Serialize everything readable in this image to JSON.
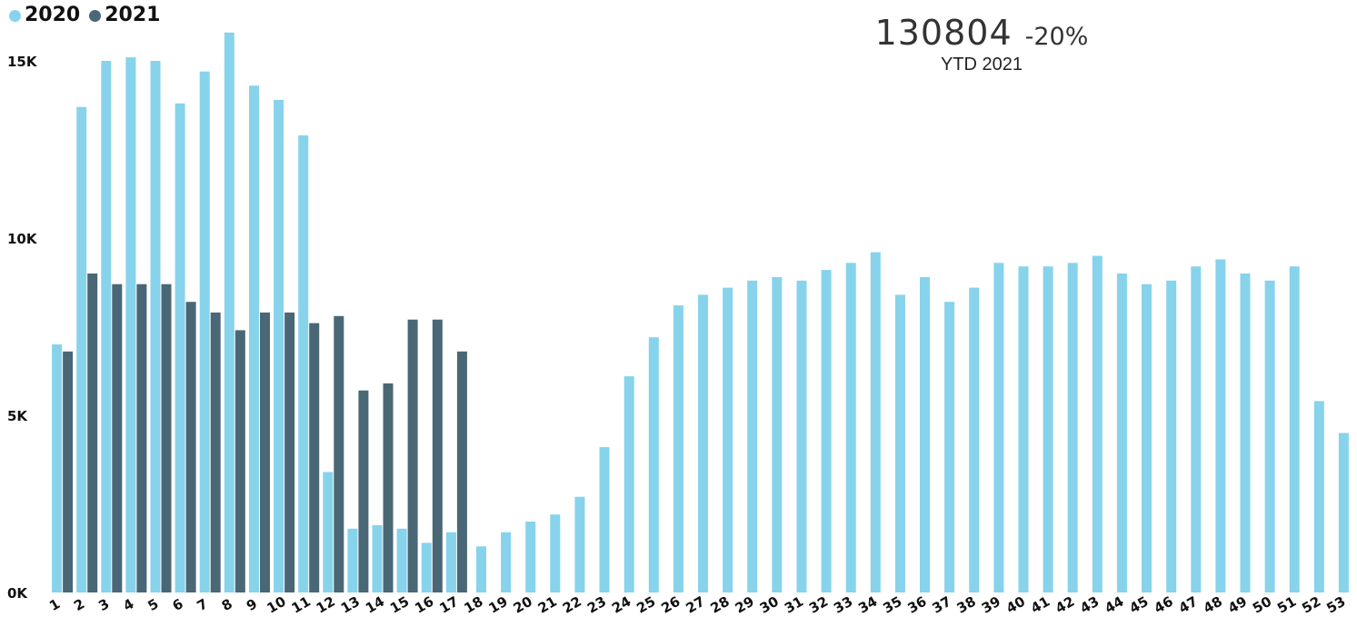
{
  "legend": {
    "items": [
      {
        "label": "2020",
        "color": "#87d3eb"
      },
      {
        "label": "2021",
        "color": "#4a6775"
      }
    ]
  },
  "kpi": {
    "value": "130804",
    "change": "-20%",
    "label": "YTD 2021"
  },
  "chart_data": {
    "type": "bar",
    "title": "",
    "xlabel": "",
    "ylabel": "",
    "ylim": [
      0,
      16000
    ],
    "y_ticks": [
      0,
      5000,
      10000,
      15000
    ],
    "y_tick_labels": [
      "0K",
      "5K",
      "10K",
      "15K"
    ],
    "grid": false,
    "legend_position": "top-left",
    "categories": [
      "1",
      "2",
      "3",
      "4",
      "5",
      "6",
      "7",
      "8",
      "9",
      "10",
      "11",
      "12",
      "13",
      "14",
      "15",
      "16",
      "17",
      "18",
      "19",
      "20",
      "21",
      "22",
      "23",
      "24",
      "25",
      "26",
      "27",
      "28",
      "29",
      "30",
      "31",
      "32",
      "33",
      "34",
      "35",
      "36",
      "37",
      "38",
      "39",
      "40",
      "41",
      "42",
      "43",
      "44",
      "45",
      "46",
      "47",
      "48",
      "49",
      "50",
      "51",
      "52",
      "53"
    ],
    "series": [
      {
        "name": "2020",
        "color": "#87d3eb",
        "values": [
          7000,
          13700,
          15000,
          15100,
          15000,
          13800,
          14700,
          15800,
          14300,
          13900,
          12900,
          3400,
          1800,
          1900,
          1800,
          1400,
          1700,
          1300,
          1700,
          2000,
          2200,
          2700,
          4100,
          6100,
          7200,
          8100,
          8400,
          8600,
          8800,
          8900,
          8800,
          9100,
          9300,
          9600,
          8400,
          8900,
          8200,
          8600,
          9300,
          9200,
          9200,
          9300,
          9500,
          9000,
          8700,
          8800,
          9200,
          9400,
          9000,
          8800,
          9200,
          5400,
          4500
        ]
      },
      {
        "name": "2021",
        "color": "#4a6775",
        "values": [
          6800,
          9000,
          8700,
          8700,
          8700,
          8200,
          7900,
          7400,
          7900,
          7900,
          7600,
          7800,
          5700,
          5900,
          7700,
          7700,
          6800,
          null,
          null,
          null,
          null,
          null,
          null,
          null,
          null,
          null,
          null,
          null,
          null,
          null,
          null,
          null,
          null,
          null,
          null,
          null,
          null,
          null,
          null,
          null,
          null,
          null,
          null,
          null,
          null,
          null,
          null,
          null,
          null,
          null,
          null,
          null,
          null
        ]
      }
    ]
  }
}
